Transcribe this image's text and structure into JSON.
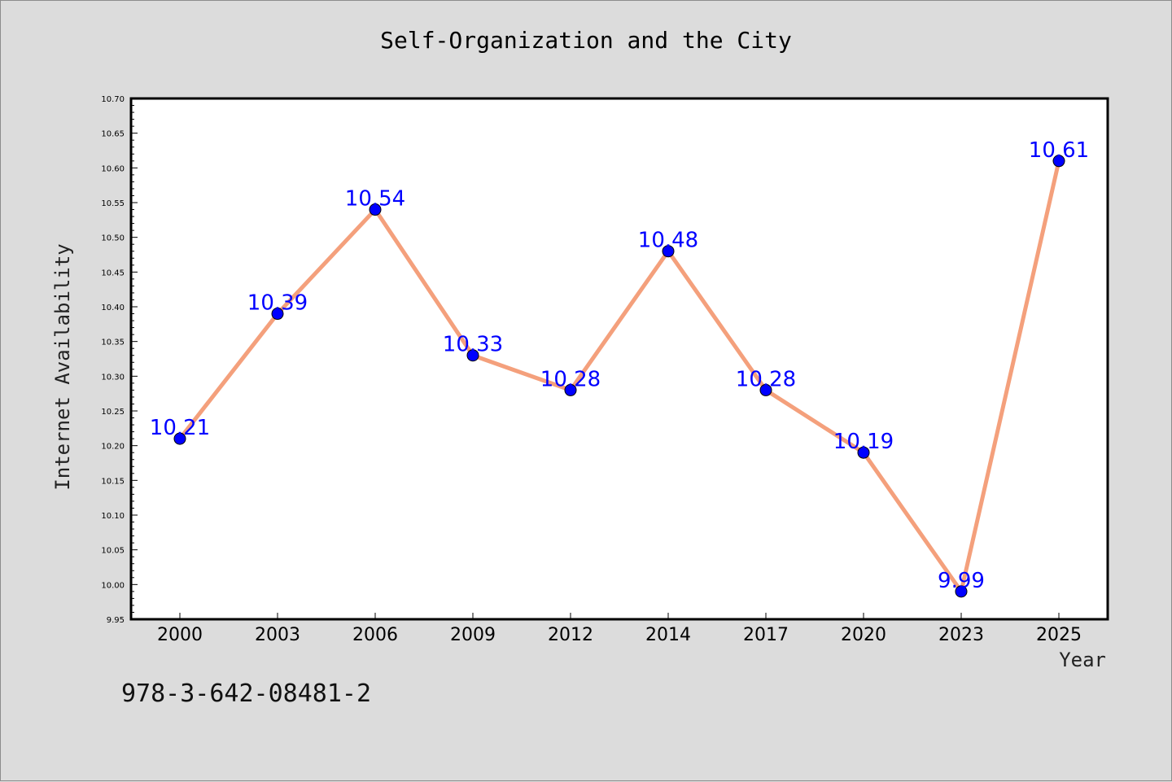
{
  "chart_data": {
    "type": "line",
    "title": "Self-Organization and the City",
    "xlabel": "Year",
    "ylabel": "Internet Availability",
    "categories": [
      "2000",
      "2003",
      "2006",
      "2009",
      "2012",
      "2014",
      "2017",
      "2020",
      "2023",
      "2025"
    ],
    "series": [
      {
        "values": [
          10.21,
          10.39,
          10.54,
          10.33,
          10.28,
          10.48,
          10.28,
          10.19,
          9.99,
          10.61
        ],
        "data_labels": [
          "10.21",
          "10.39",
          "10.54",
          "10.33",
          "10.28",
          "10.48",
          "10.28",
          "10.19",
          "9.99",
          "10.61"
        ]
      }
    ],
    "ylim": [
      9.95,
      10.7
    ],
    "yticks": [
      "9.95",
      "10.00",
      "10.05",
      "10.10",
      "10.15",
      "10.20",
      "10.25",
      "10.30",
      "10.35",
      "10.40",
      "10.45",
      "10.50",
      "10.55",
      "10.60",
      "10.65",
      "10.70"
    ],
    "grid": false,
    "colors": {
      "line": "#f4a07c",
      "marker": "#0000ff",
      "label": "#0000ff",
      "plot_bg": "#ffffff",
      "figure_bg": "#dcdcdc"
    }
  },
  "footer": {
    "isbn": "978-3-642-08481-2"
  }
}
